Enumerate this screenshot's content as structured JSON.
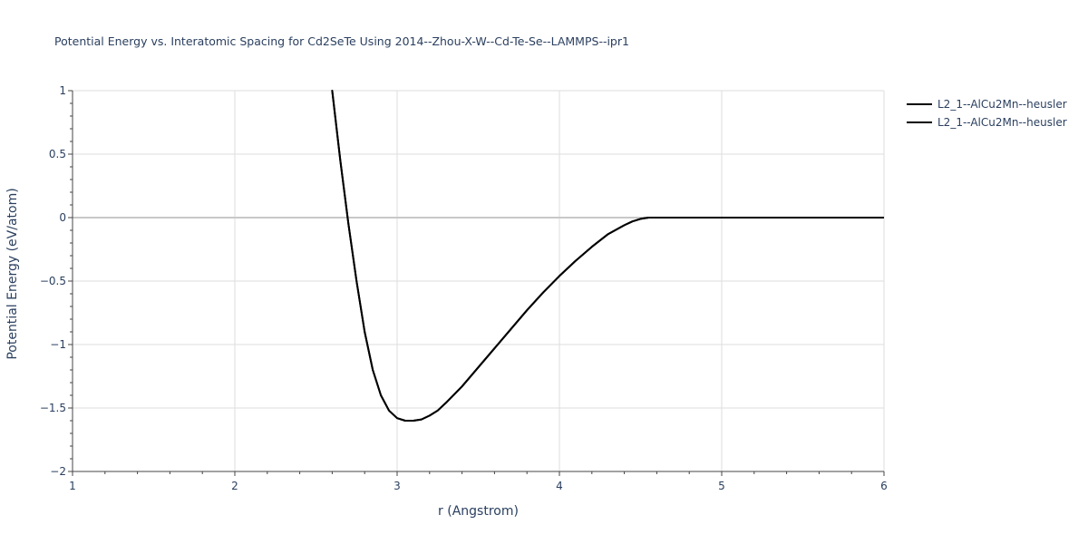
{
  "chart_data": {
    "type": "line",
    "title": "Potential Energy vs. Interatomic Spacing for Cd2SeTe Using 2014--Zhou-X-W--Cd-Te-Se--LAMMPS--ipr1",
    "xlabel": "r (Angstrom)",
    "ylabel": "Potential Energy (eV/atom)",
    "xlim": [
      1,
      6
    ],
    "ylim": [
      -2,
      1
    ],
    "xticks": [
      1,
      2,
      3,
      4,
      5,
      6
    ],
    "xtick_labels": [
      "1",
      "2",
      "3",
      "4",
      "5",
      "6"
    ],
    "yticks": [
      1,
      0.5,
      0,
      -0.5,
      -1,
      -1.5,
      -2
    ],
    "ytick_labels": [
      "1",
      "0.5",
      "0",
      "−0.5",
      "−1",
      "−1.5",
      "−2"
    ],
    "grid": true,
    "legend_position": "top-right",
    "series": [
      {
        "name": "L2_1--AlCu2Mn--heusler",
        "color": "#000000",
        "x": [
          2.6,
          2.65,
          2.7,
          2.75,
          2.8,
          2.85,
          2.9,
          2.95,
          3.0,
          3.05,
          3.1,
          3.15,
          3.2,
          3.25,
          3.3,
          3.4,
          3.5,
          3.6,
          3.7,
          3.8,
          3.9,
          4.0,
          4.1,
          4.2,
          4.3,
          4.4,
          4.45,
          4.5,
          4.55,
          4.6,
          4.7,
          5.0,
          5.5,
          6.0
        ],
        "y": [
          1.0,
          0.45,
          -0.05,
          -0.5,
          -0.9,
          -1.2,
          -1.4,
          -1.52,
          -1.58,
          -1.6,
          -1.6,
          -1.59,
          -1.56,
          -1.52,
          -1.46,
          -1.33,
          -1.18,
          -1.03,
          -0.88,
          -0.73,
          -0.59,
          -0.46,
          -0.34,
          -0.23,
          -0.13,
          -0.06,
          -0.03,
          -0.01,
          0.0,
          0.0,
          0.0,
          0.0,
          0.0,
          0.0
        ]
      },
      {
        "name": "L2_1--AlCu2Mn--heusler",
        "color": "#000000",
        "x": [
          2.6,
          2.65,
          2.7,
          2.75,
          2.8,
          2.85,
          2.9,
          2.95,
          3.0,
          3.05,
          3.1,
          3.15,
          3.2,
          3.25,
          3.3,
          3.4,
          3.5,
          3.6,
          3.7,
          3.8,
          3.9,
          4.0,
          4.1,
          4.2,
          4.3,
          4.4,
          4.45,
          4.5,
          4.55,
          4.6,
          4.7,
          5.0,
          5.5,
          6.0
        ],
        "y": [
          1.0,
          0.45,
          -0.05,
          -0.5,
          -0.9,
          -1.2,
          -1.4,
          -1.52,
          -1.58,
          -1.6,
          -1.6,
          -1.59,
          -1.56,
          -1.52,
          -1.46,
          -1.33,
          -1.18,
          -1.03,
          -0.88,
          -0.73,
          -0.59,
          -0.46,
          -0.34,
          -0.23,
          -0.13,
          -0.06,
          -0.03,
          -0.01,
          0.0,
          0.0,
          0.0,
          0.0,
          0.0,
          0.0
        ]
      }
    ]
  }
}
